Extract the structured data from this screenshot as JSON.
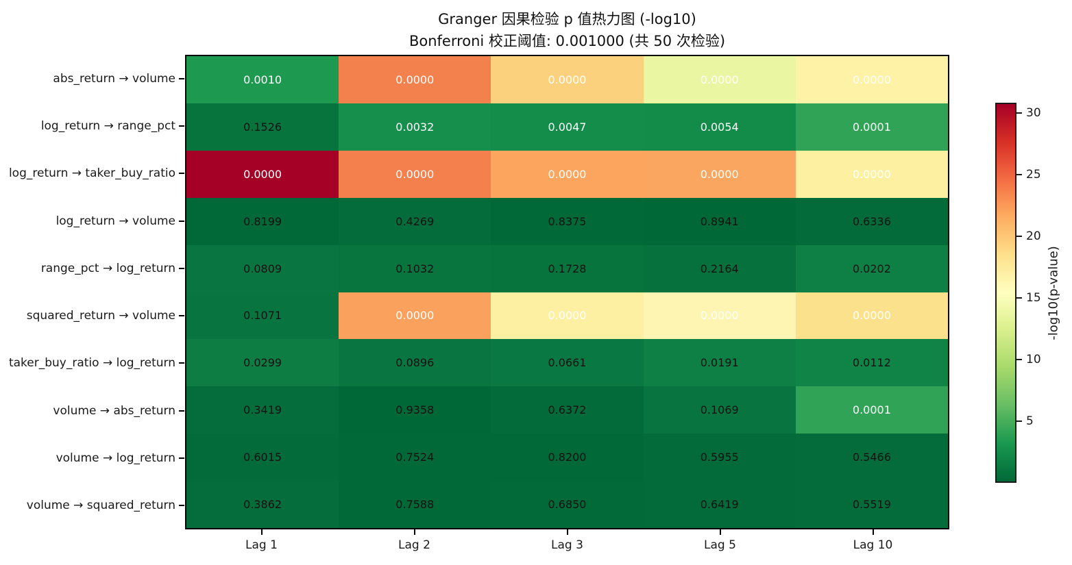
{
  "chart_data": {
    "type": "heatmap",
    "title": "Granger 因果检验 p 值热力图 (-log10)",
    "subtitle": "Bonferroni 校正阈值: 0.001000 (共 50 次检验)",
    "x_axis_label": "",
    "x_categories": [
      "Lag 1",
      "Lag 2",
      "Lag 3",
      "Lag 5",
      "Lag 10"
    ],
    "value_semantics": "annotated values are Granger causality p-values; cell color encodes -log10(p-value) with RdYlGn reversed colormap (green = high p, red = low p)",
    "rows": [
      {
        "label": "abs_return → volume",
        "cells": [
          {
            "text": "0.0010",
            "bg": "#1e9950",
            "fg": "#ffffff"
          },
          {
            "text": "0.0000",
            "bg": "#f3814e",
            "fg": "#ffffff"
          },
          {
            "text": "0.0000",
            "bg": "#fcd17d",
            "fg": "#ffffff"
          },
          {
            "text": "0.0000",
            "bg": "#eaf6a2",
            "fg": "#ffffff"
          },
          {
            "text": "0.0000",
            "bg": "#fdf2a6",
            "fg": "#ffffff"
          }
        ]
      },
      {
        "label": "log_return → range_pct",
        "cells": [
          {
            "text": "0.1526",
            "bg": "#07743d",
            "fg": "#111111"
          },
          {
            "text": "0.0032",
            "bg": "#158f4b",
            "fg": "#ffffff"
          },
          {
            "text": "0.0047",
            "bg": "#148d4a",
            "fg": "#ffffff"
          },
          {
            "text": "0.0054",
            "bg": "#138c49",
            "fg": "#ffffff"
          },
          {
            "text": "0.0001",
            "bg": "#31a356",
            "fg": "#ffffff"
          }
        ]
      },
      {
        "label": "log_return → taker_buy_ratio",
        "cells": [
          {
            "text": "0.0000",
            "bg": "#a50126",
            "fg": "#ffffff"
          },
          {
            "text": "0.0000",
            "bg": "#f4804d",
            "fg": "#ffffff"
          },
          {
            "text": "0.0000",
            "bg": "#fba55f",
            "fg": "#ffffff"
          },
          {
            "text": "0.0000",
            "bg": "#fba660",
            "fg": "#ffffff"
          },
          {
            "text": "0.0000",
            "bg": "#fdf0a0",
            "fg": "#ffffff"
          }
        ]
      },
      {
        "label": "log_return → volume",
        "cells": [
          {
            "text": "0.8199",
            "bg": "#016938",
            "fg": "#111111"
          },
          {
            "text": "0.4269",
            "bg": "#036c3a",
            "fg": "#111111"
          },
          {
            "text": "0.8375",
            "bg": "#016938",
            "fg": "#111111"
          },
          {
            "text": "0.8941",
            "bg": "#006837",
            "fg": "#111111"
          },
          {
            "text": "0.6336",
            "bg": "#026b39",
            "fg": "#111111"
          }
        ]
      },
      {
        "label": "range_pct → log_return",
        "cells": [
          {
            "text": "0.0809",
            "bg": "#097641",
            "fg": "#111111"
          },
          {
            "text": "0.1032",
            "bg": "#08753f",
            "fg": "#111111"
          },
          {
            "text": "0.1728",
            "bg": "#07733d",
            "fg": "#111111"
          },
          {
            "text": "0.2164",
            "bg": "#06713c",
            "fg": "#111111"
          },
          {
            "text": "0.0202",
            "bg": "#0e7f45",
            "fg": "#111111"
          }
        ]
      },
      {
        "label": "squared_return → volume",
        "cells": [
          {
            "text": "0.1071",
            "bg": "#087540",
            "fg": "#111111"
          },
          {
            "text": "0.0000",
            "bg": "#f9a15d",
            "fg": "#ffffff"
          },
          {
            "text": "0.0000",
            "bg": "#fdf0a3",
            "fg": "#ffffff"
          },
          {
            "text": "0.0000",
            "bg": "#fdf5b1",
            "fg": "#ffffff"
          },
          {
            "text": "0.0000",
            "bg": "#fce18d",
            "fg": "#ffffff"
          }
        ]
      },
      {
        "label": "taker_buy_ratio → log_return",
        "cells": [
          {
            "text": "0.0299",
            "bg": "#0d7d44",
            "fg": "#111111"
          },
          {
            "text": "0.0896",
            "bg": "#097541",
            "fg": "#111111"
          },
          {
            "text": "0.0661",
            "bg": "#0a7842",
            "fg": "#111111"
          },
          {
            "text": "0.0191",
            "bg": "#0e7f45",
            "fg": "#111111"
          },
          {
            "text": "0.0112",
            "bg": "#108346",
            "fg": "#111111"
          }
        ]
      },
      {
        "label": "volume → abs_return",
        "cells": [
          {
            "text": "0.3419",
            "bg": "#046d3b",
            "fg": "#111111"
          },
          {
            "text": "0.9358",
            "bg": "#006837",
            "fg": "#111111"
          },
          {
            "text": "0.6372",
            "bg": "#026b39",
            "fg": "#111111"
          },
          {
            "text": "0.1069",
            "bg": "#087540",
            "fg": "#111111"
          },
          {
            "text": "0.0001",
            "bg": "#31a356",
            "fg": "#ffffff"
          }
        ]
      },
      {
        "label": "volume → log_return",
        "cells": [
          {
            "text": "0.6015",
            "bg": "#026b39",
            "fg": "#111111"
          },
          {
            "text": "0.7524",
            "bg": "#016938",
            "fg": "#111111"
          },
          {
            "text": "0.8200",
            "bg": "#016938",
            "fg": "#111111"
          },
          {
            "text": "0.5955",
            "bg": "#026b39",
            "fg": "#111111"
          },
          {
            "text": "0.5466",
            "bg": "#036c3a",
            "fg": "#111111"
          }
        ]
      },
      {
        "label": "volume → squared_return",
        "cells": [
          {
            "text": "0.3862",
            "bg": "#046d3b",
            "fg": "#111111"
          },
          {
            "text": "0.7588",
            "bg": "#016938",
            "fg": "#111111"
          },
          {
            "text": "0.6850",
            "bg": "#026a39",
            "fg": "#111111"
          },
          {
            "text": "0.6419",
            "bg": "#026b39",
            "fg": "#111111"
          },
          {
            "text": "0.5519",
            "bg": "#036c3a",
            "fg": "#111111"
          }
        ]
      }
    ],
    "colorbar": {
      "label": "-log10(p-value)",
      "ticks": [
        5,
        10,
        15,
        20,
        25,
        30
      ],
      "min": 0,
      "max": 30.83,
      "gradient_bottom_to_top": [
        "#006837",
        "#1a9850",
        "#66bd63",
        "#a6d96a",
        "#d9ef8b",
        "#ffffbf",
        "#fee08b",
        "#fdae61",
        "#f46d43",
        "#d73027",
        "#a50026"
      ]
    },
    "legend_position": "right-colorbar",
    "grid": false
  }
}
